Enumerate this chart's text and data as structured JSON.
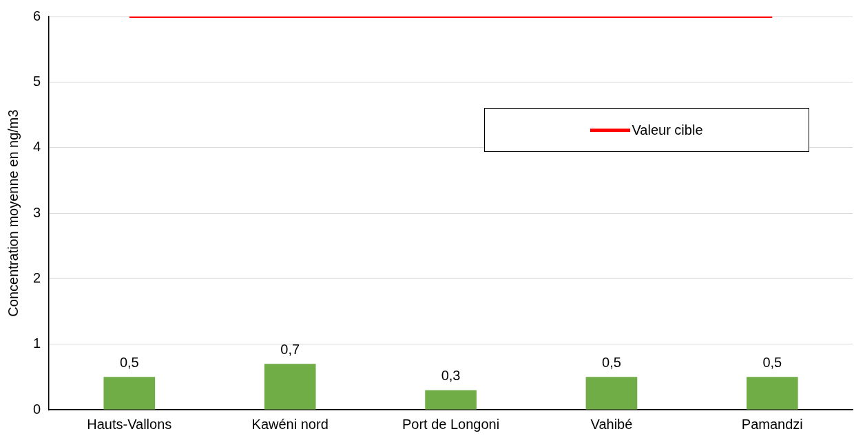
{
  "chart_data": {
    "type": "bar",
    "ylabel": "Concentration moyenne en ng/m3",
    "categories": [
      "Hauts-Vallons",
      "Kawéni nord",
      "Port de Longoni",
      "Vahibé",
      "Pamandzi"
    ],
    "series": [
      {
        "color": "#70ad47",
        "values": [
          0.5,
          0.7,
          0.3,
          0.5,
          0.5
        ],
        "value_labels": [
          "0,5",
          "0,7",
          "0,3",
          "0,5",
          "0,5"
        ]
      },
      {
        "type": "line",
        "name": "Valeur cible",
        "color": "#ff0000",
        "values": [
          6,
          6,
          6,
          6,
          6
        ],
        "marker": "none"
      }
    ],
    "ylim": [
      0,
      6
    ],
    "yticks": [
      0,
      1,
      2,
      3,
      4,
      5,
      6
    ],
    "grid": "y",
    "legend": "top right"
  }
}
